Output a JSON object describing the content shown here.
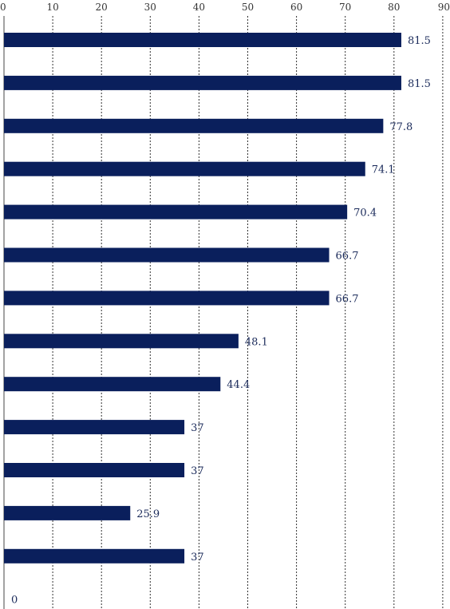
{
  "chart_data": {
    "type": "bar",
    "orientation": "horizontal",
    "xlim": [
      0,
      90
    ],
    "x_ticks": [
      "0",
      "10",
      "20",
      "30",
      "40",
      "50",
      "60",
      "70",
      "80",
      "90"
    ],
    "tick_position": "top",
    "grid": "vertical dotted",
    "bar_color": "#0a1f5c",
    "label_color": "#1a2a5a",
    "values": [
      81.5,
      81.5,
      77.8,
      74.1,
      70.4,
      66.7,
      66.7,
      48.1,
      44.4,
      37,
      37,
      25.9,
      37,
      0
    ],
    "value_labels": [
      "81.5",
      "81.5",
      "77.8",
      "74.1",
      "70.4",
      "66.7",
      "66.7",
      "48.1",
      "44.4",
      "37",
      "37",
      "25.9",
      "37",
      "0"
    ]
  }
}
